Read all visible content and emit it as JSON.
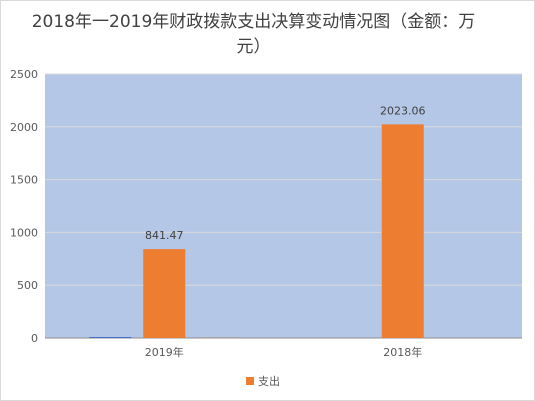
{
  "chart_data": {
    "type": "bar",
    "title": "2018年一2019年财政拨款支出决算变动情况图（金额：万元）",
    "categories": [
      "2019年",
      "2018年"
    ],
    "series": [
      {
        "name": "",
        "values": [
          3,
          null
        ],
        "color": "#4472c4",
        "show_label": false
      },
      {
        "name": "支出",
        "values": [
          841.47,
          2023.06
        ],
        "color": "#ed7d31",
        "show_label": true
      },
      {
        "name": "",
        "values": [
          2,
          null
        ],
        "color": "#a5a5a5",
        "show_label": false
      }
    ],
    "data_labels": [
      "841.47",
      "2023.06"
    ],
    "yticks": [
      "0",
      "500",
      "1000",
      "1500",
      "2000",
      "2500"
    ],
    "ylim": [
      0,
      2500
    ],
    "plot_background": "#b4c7e7",
    "grid": true,
    "legend": "bottom",
    "legend_items": [
      {
        "name": "支出",
        "color": "#ed7d31"
      }
    ]
  }
}
